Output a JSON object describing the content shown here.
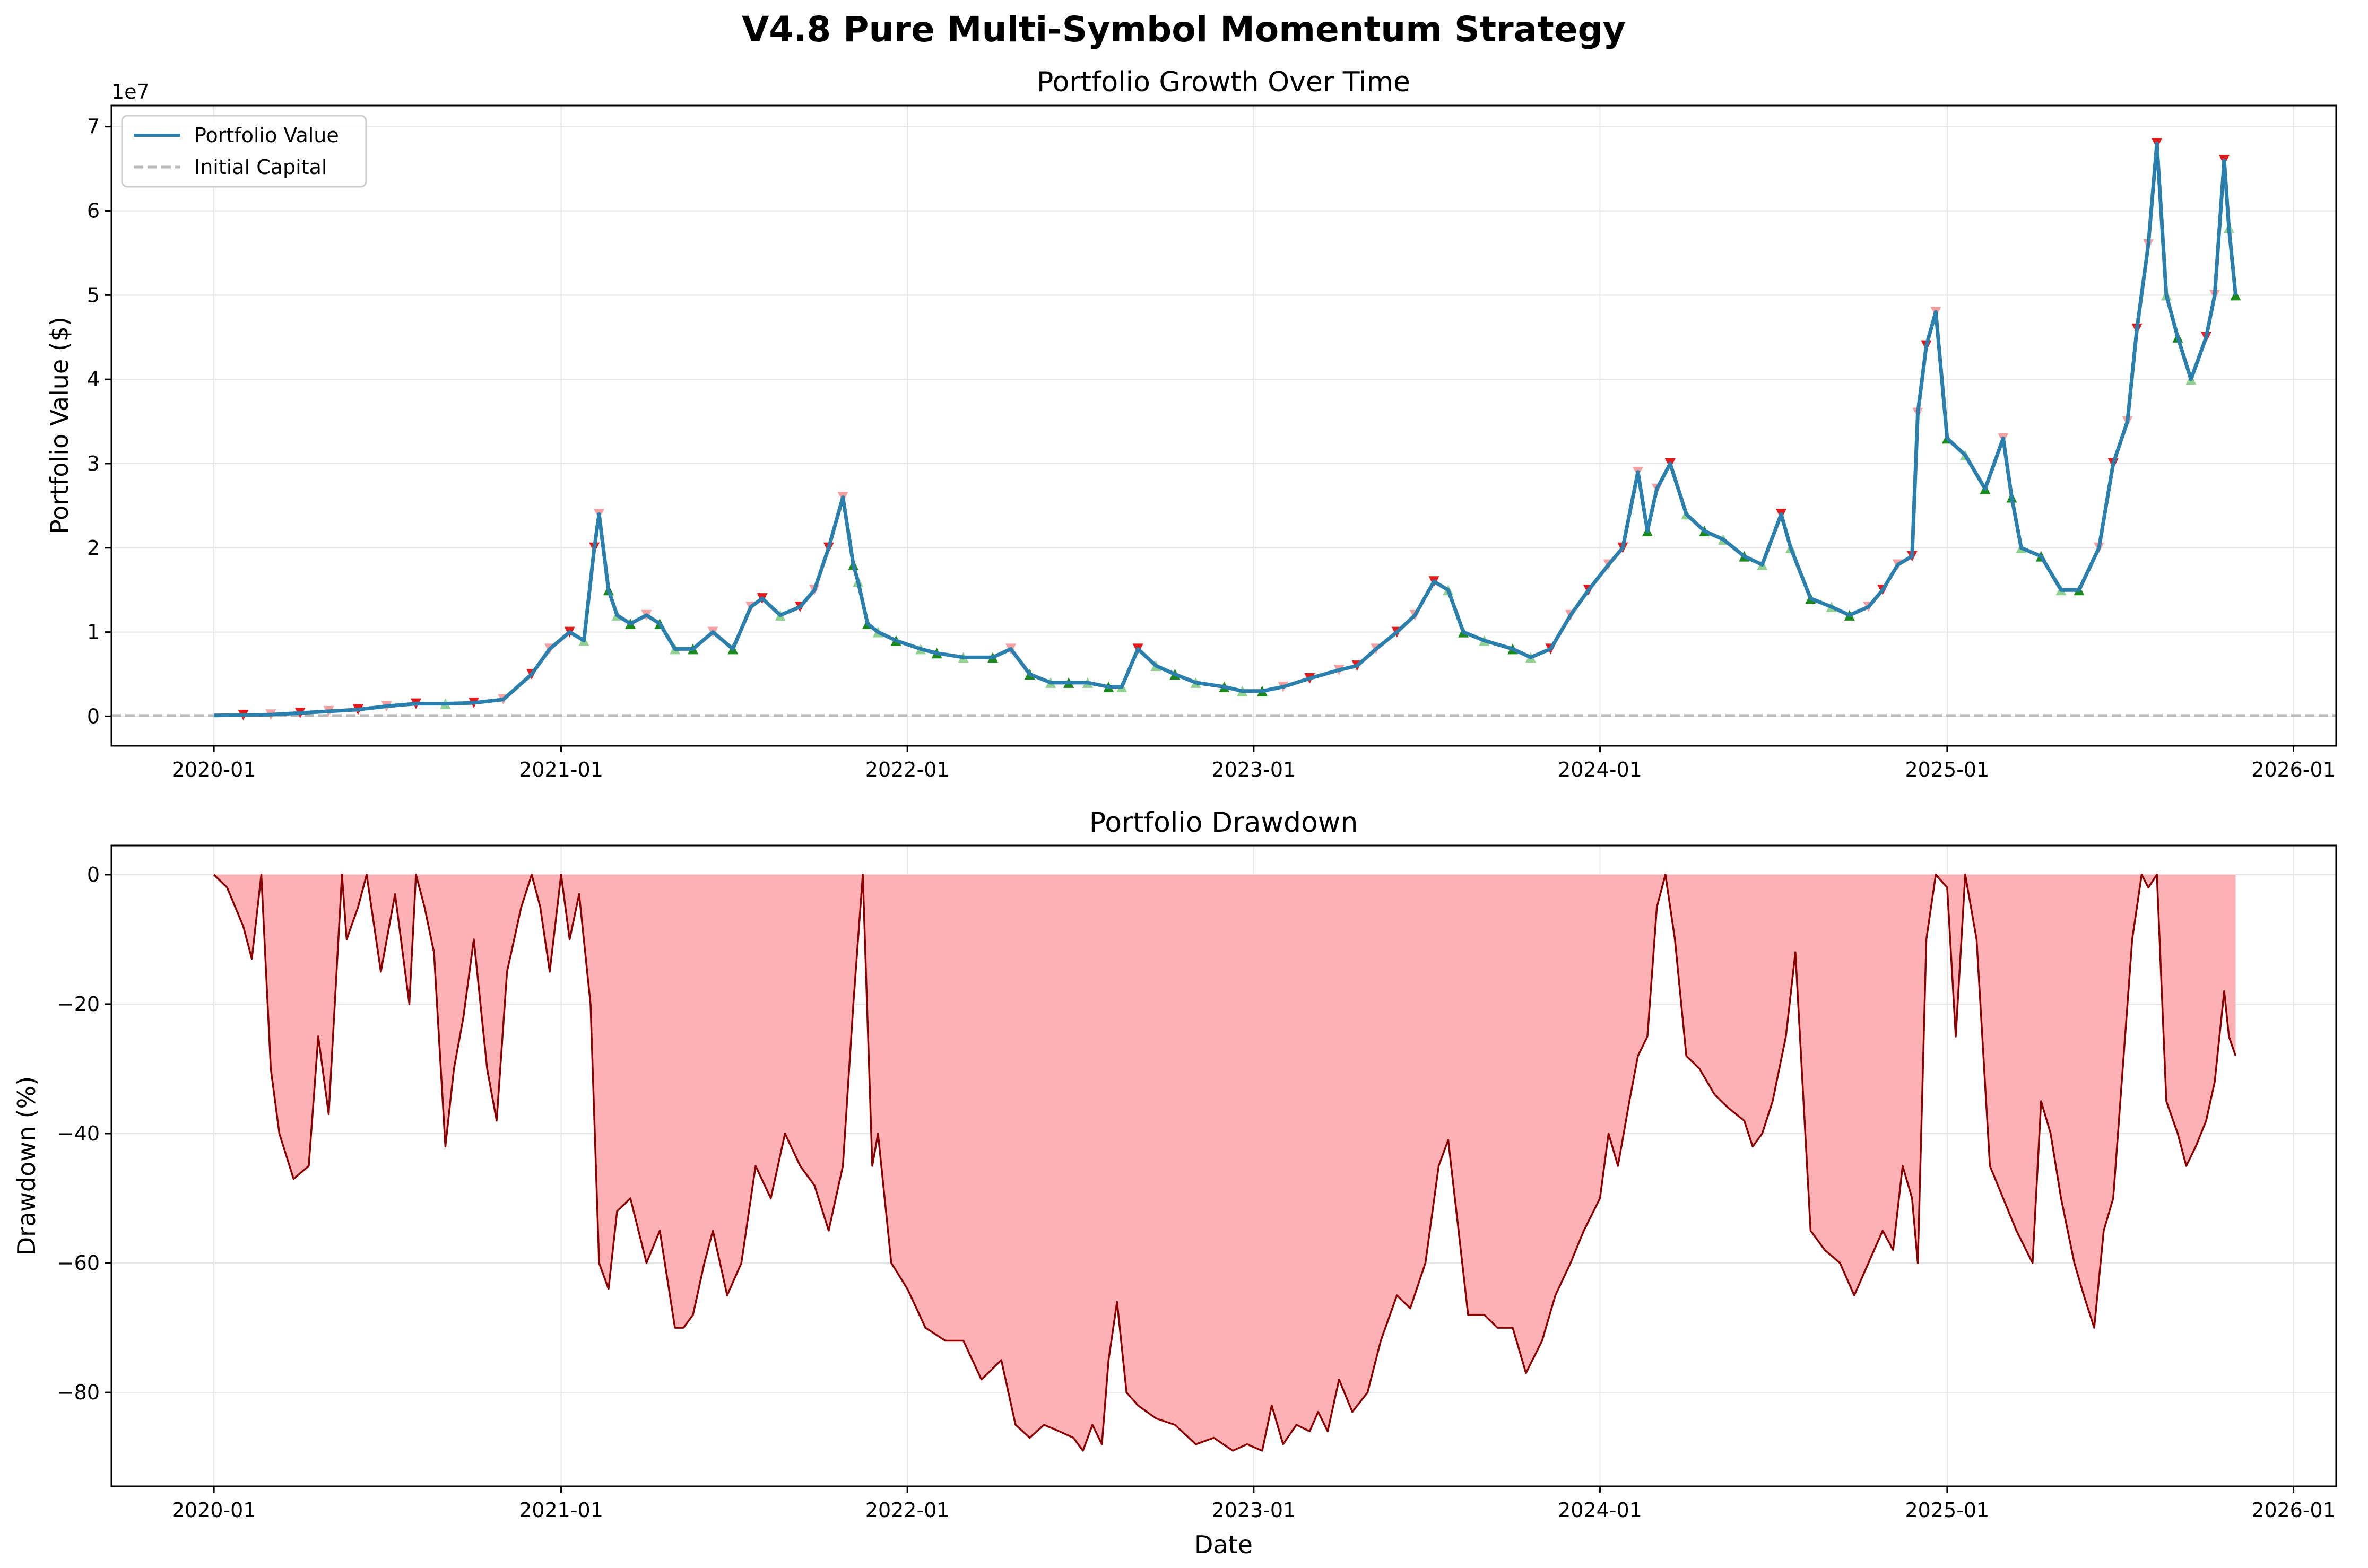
{
  "figure": {
    "title": "V4.8 Pure Multi-Symbol Momentum Strategy"
  },
  "chart_data": [
    {
      "type": "line",
      "title": "Portfolio Growth Over Time",
      "xlabel": "",
      "ylabel": "Portfolio Value ($)",
      "y_offset_label": "1e7",
      "ylim": [
        -3500000,
        72500000
      ],
      "xlim": [
        "2019-09-15",
        "2026-02-15"
      ],
      "x_ticks": [
        "2020-01",
        "2021-01",
        "2022-01",
        "2023-01",
        "2024-01",
        "2025-01",
        "2026-01"
      ],
      "y_ticks": [
        0,
        10000000,
        20000000,
        30000000,
        40000000,
        50000000,
        60000000,
        70000000
      ],
      "y_tick_labels": [
        "0",
        "1",
        "2",
        "3",
        "4",
        "5",
        "6",
        "7"
      ],
      "grid": true,
      "legend": {
        "placement": "upper-left",
        "entries": [
          "Portfolio Value",
          "Initial Capital"
        ]
      },
      "colors": {
        "portfolio": "#2a7fad",
        "initial": "#b8b8b8",
        "sell": "#e31a1c",
        "sell_light": "#f4a0a0",
        "buy": "#1a8a1a",
        "buy_light": "#8fd18f"
      },
      "initial_capital": 100000,
      "series": [
        {
          "name": "Portfolio Value",
          "x": [
            "2020-01-01",
            "2020-02-01",
            "2020-03-01",
            "2020-04-01",
            "2020-05-01",
            "2020-06-01",
            "2020-07-01",
            "2020-08-01",
            "2020-09-01",
            "2020-10-01",
            "2020-11-01",
            "2020-12-01",
            "2020-12-20",
            "2021-01-10",
            "2021-01-25",
            "2021-02-05",
            "2021-02-10",
            "2021-02-20",
            "2021-03-01",
            "2021-03-15",
            "2021-04-01",
            "2021-04-15",
            "2021-05-01",
            "2021-05-20",
            "2021-06-10",
            "2021-07-01",
            "2021-07-20",
            "2021-08-01",
            "2021-08-20",
            "2021-09-10",
            "2021-09-25",
            "2021-10-10",
            "2021-10-25",
            "2021-11-05",
            "2021-11-10",
            "2021-11-20",
            "2021-12-01",
            "2021-12-20",
            "2022-01-15",
            "2022-02-01",
            "2022-03-01",
            "2022-04-01",
            "2022-04-20",
            "2022-05-10",
            "2022-06-01",
            "2022-06-20",
            "2022-07-10",
            "2022-08-01",
            "2022-08-15",
            "2022-09-01",
            "2022-09-20",
            "2022-10-10",
            "2022-11-01",
            "2022-12-01",
            "2022-12-20",
            "2023-01-10",
            "2023-02-01",
            "2023-03-01",
            "2023-04-01",
            "2023-04-20",
            "2023-05-10",
            "2023-06-01",
            "2023-06-20",
            "2023-07-10",
            "2023-07-25",
            "2023-08-10",
            "2023-09-01",
            "2023-10-01",
            "2023-10-20",
            "2023-11-10",
            "2023-12-01",
            "2023-12-20",
            "2024-01-10",
            "2024-01-25",
            "2024-02-10",
            "2024-02-20",
            "2024-03-01",
            "2024-03-15",
            "2024-04-01",
            "2024-04-20",
            "2024-05-10",
            "2024-06-01",
            "2024-06-20",
            "2024-07-10",
            "2024-07-20",
            "2024-08-10",
            "2024-09-01",
            "2024-09-20",
            "2024-10-10",
            "2024-10-25",
            "2024-11-10",
            "2024-11-25",
            "2024-12-01",
            "2024-12-10",
            "2024-12-20",
            "2025-01-01",
            "2025-01-20",
            "2025-02-10",
            "2025-03-01",
            "2025-03-10",
            "2025-03-20",
            "2025-04-10",
            "2025-05-01",
            "2025-05-20",
            "2025-06-10",
            "2025-06-25",
            "2025-07-10",
            "2025-07-20",
            "2025-08-01",
            "2025-08-10",
            "2025-08-20",
            "2025-09-01",
            "2025-09-15",
            "2025-10-01",
            "2025-10-10",
            "2025-10-20",
            "2025-10-25",
            "2025-11-01"
          ],
          "y": [
            100000,
            150000,
            200000,
            400000,
            600000,
            800000,
            1200000,
            1500000,
            1500000,
            1600000,
            2000000,
            5000000,
            8000000,
            10000000,
            9000000,
            20000000,
            24000000,
            15000000,
            12000000,
            11000000,
            12000000,
            11000000,
            8000000,
            8000000,
            10000000,
            8000000,
            13000000,
            14000000,
            12000000,
            13000000,
            15000000,
            20000000,
            26000000,
            18000000,
            16000000,
            11000000,
            10000000,
            9000000,
            8000000,
            7500000,
            7000000,
            7000000,
            8000000,
            5000000,
            4000000,
            4000000,
            4000000,
            3500000,
            3500000,
            8000000,
            6000000,
            5000000,
            4000000,
            3500000,
            3000000,
            3000000,
            3500000,
            4500000,
            5500000,
            6000000,
            8000000,
            10000000,
            12000000,
            16000000,
            15000000,
            10000000,
            9000000,
            8000000,
            7000000,
            8000000,
            12000000,
            15000000,
            18000000,
            20000000,
            29000000,
            22000000,
            27000000,
            30000000,
            24000000,
            22000000,
            21000000,
            19000000,
            18000000,
            24000000,
            20000000,
            14000000,
            13000000,
            12000000,
            13000000,
            15000000,
            18000000,
            19000000,
            36000000,
            44000000,
            48000000,
            33000000,
            31000000,
            27000000,
            33000000,
            26000000,
            20000000,
            19000000,
            15000000,
            15000000,
            20000000,
            30000000,
            35000000,
            46000000,
            56000000,
            68000000,
            50000000,
            45000000,
            40000000,
            45000000,
            50000000,
            66000000,
            58000000,
            50000000
          ]
        },
        {
          "name": "Initial Capital",
          "y": 100000
        }
      ]
    },
    {
      "type": "area",
      "title": "Portfolio Drawdown",
      "xlabel": "Date",
      "ylabel": "Drawdown (%)",
      "ylim": [
        -94.5,
        4.5
      ],
      "xlim": [
        "2019-09-15",
        "2026-02-15"
      ],
      "x_ticks": [
        "2020-01",
        "2021-01",
        "2022-01",
        "2023-01",
        "2024-01",
        "2025-01",
        "2026-01"
      ],
      "y_ticks": [
        0,
        -20,
        -40,
        -60,
        -80
      ],
      "y_tick_labels": [
        "0",
        "−20",
        "−40",
        "−60",
        "−80"
      ],
      "grid": true,
      "colors": {
        "fill": "#fcb2b4",
        "line": "#8b0000"
      },
      "series": [
        {
          "name": "",
          "x": [
            "2020-01-01",
            "2020-01-15",
            "2020-02-01",
            "2020-02-10",
            "2020-02-20",
            "2020-03-01",
            "2020-03-10",
            "2020-03-25",
            "2020-04-10",
            "2020-04-20",
            "2020-05-01",
            "2020-05-15",
            "2020-05-20",
            "2020-06-01",
            "2020-06-10",
            "2020-06-25",
            "2020-07-10",
            "2020-07-25",
            "2020-08-01",
            "2020-08-10",
            "2020-08-20",
            "2020-09-01",
            "2020-09-10",
            "2020-09-20",
            "2020-10-01",
            "2020-10-15",
            "2020-10-25",
            "2020-11-05",
            "2020-11-20",
            "2020-12-01",
            "2020-12-10",
            "2020-12-20",
            "2021-01-01",
            "2021-01-10",
            "2021-01-20",
            "2021-02-01",
            "2021-02-10",
            "2021-02-20",
            "2021-03-01",
            "2021-03-15",
            "2021-04-01",
            "2021-04-15",
            "2021-05-01",
            "2021-05-10",
            "2021-05-20",
            "2021-06-01",
            "2021-06-10",
            "2021-06-25",
            "2021-07-10",
            "2021-07-25",
            "2021-08-10",
            "2021-08-25",
            "2021-09-10",
            "2021-09-25",
            "2021-10-10",
            "2021-10-25",
            "2021-11-05",
            "2021-11-15",
            "2021-11-25",
            "2021-12-01",
            "2021-12-15",
            "2022-01-01",
            "2022-01-20",
            "2022-02-10",
            "2022-03-01",
            "2022-03-20",
            "2022-04-10",
            "2022-04-25",
            "2022-05-10",
            "2022-05-25",
            "2022-06-10",
            "2022-06-25",
            "2022-07-05",
            "2022-07-15",
            "2022-07-25",
            "2022-08-01",
            "2022-08-10",
            "2022-08-20",
            "2022-09-01",
            "2022-09-20",
            "2022-10-10",
            "2022-11-01",
            "2022-11-20",
            "2022-12-10",
            "2022-12-25",
            "2023-01-10",
            "2023-01-20",
            "2023-02-01",
            "2023-02-15",
            "2023-03-01",
            "2023-03-10",
            "2023-03-20",
            "2023-04-01",
            "2023-04-15",
            "2023-05-01",
            "2023-05-15",
            "2023-06-01",
            "2023-06-15",
            "2023-07-01",
            "2023-07-15",
            "2023-07-25",
            "2023-08-05",
            "2023-08-15",
            "2023-09-01",
            "2023-09-15",
            "2023-10-01",
            "2023-10-15",
            "2023-11-01",
            "2023-11-15",
            "2023-12-01",
            "2023-12-15",
            "2024-01-01",
            "2024-01-10",
            "2024-01-20",
            "2024-02-01",
            "2024-02-10",
            "2024-02-20",
            "2024-03-01",
            "2024-03-10",
            "2024-03-20",
            "2024-04-01",
            "2024-04-15",
            "2024-05-01",
            "2024-05-15",
            "2024-06-01",
            "2024-06-10",
            "2024-06-20",
            "2024-07-01",
            "2024-07-15",
            "2024-07-25",
            "2024-08-10",
            "2024-08-25",
            "2024-09-10",
            "2024-09-25",
            "2024-10-10",
            "2024-10-25",
            "2024-11-05",
            "2024-11-15",
            "2024-11-25",
            "2024-12-01",
            "2024-12-10",
            "2024-12-20",
            "2025-01-01",
            "2025-01-10",
            "2025-01-20",
            "2025-02-01",
            "2025-02-15",
            "2025-03-01",
            "2025-03-15",
            "2025-04-01",
            "2025-04-10",
            "2025-04-20",
            "2025-05-01",
            "2025-05-15",
            "2025-05-25",
            "2025-06-05",
            "2025-06-15",
            "2025-06-25",
            "2025-07-05",
            "2025-07-15",
            "2025-07-25",
            "2025-08-01",
            "2025-08-10",
            "2025-08-20",
            "2025-09-01",
            "2025-09-10",
            "2025-09-20",
            "2025-10-01",
            "2025-10-10",
            "2025-10-20",
            "2025-10-25",
            "2025-11-01"
          ],
          "y": [
            0,
            -2,
            -8,
            -13,
            0,
            -30,
            -40,
            -47,
            -45,
            -25,
            -37,
            0,
            -10,
            -5,
            0,
            -15,
            -3,
            -20,
            0,
            -5,
            -12,
            -42,
            -30,
            -22,
            -10,
            -30,
            -38,
            -15,
            -5,
            0,
            -5,
            -15,
            0,
            -10,
            -3,
            -20,
            -60,
            -64,
            -52,
            -50,
            -60,
            -55,
            -70,
            -70,
            -68,
            -60,
            -55,
            -65,
            -60,
            -45,
            -50,
            -40,
            -45,
            -48,
            -55,
            -45,
            -20,
            0,
            -45,
            -40,
            -60,
            -64,
            -70,
            -72,
            -72,
            -78,
            -75,
            -85,
            -87,
            -85,
            -86,
            -87,
            -89,
            -85,
            -88,
            -75,
            -66,
            -80,
            -82,
            -84,
            -85,
            -88,
            -87,
            -89,
            -88,
            -89,
            -82,
            -88,
            -85,
            -86,
            -83,
            -86,
            -78,
            -83,
            -80,
            -72,
            -65,
            -67,
            -60,
            -45,
            -41,
            -55,
            -68,
            -68,
            -70,
            -70,
            -77,
            -72,
            -65,
            -60,
            -55,
            -50,
            -40,
            -45,
            -35,
            -28,
            -25,
            -5,
            0,
            -10,
            -28,
            -30,
            -34,
            -36,
            -38,
            -42,
            -40,
            -35,
            -25,
            -12,
            -55,
            -58,
            -60,
            -65,
            -60,
            -55,
            -58,
            -45,
            -50,
            -60,
            -10,
            0,
            -2,
            -25,
            0,
            -10,
            -45,
            -50,
            -55,
            -60,
            -35,
            -40,
            -50,
            -60,
            -65,
            -70,
            -55,
            -50,
            -30,
            -10,
            0,
            -2,
            0,
            -35,
            -40,
            -45,
            -42,
            -38,
            -32,
            -18,
            -25,
            -28
          ]
        }
      ]
    }
  ]
}
